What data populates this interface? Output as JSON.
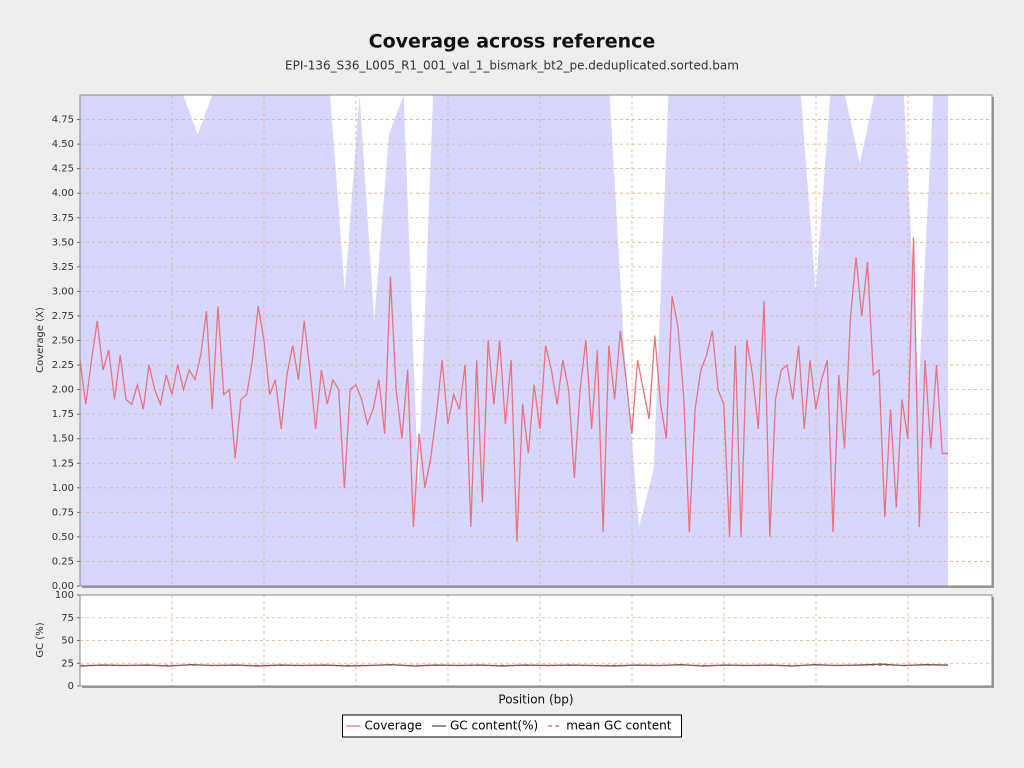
{
  "chart_data": [
    {
      "type": "line",
      "title": "Coverage across reference",
      "subtitle": "EPI-136_S36_L005_R1_001_val_1_bismark_bt2_pe.deduplicated.sorted.bam",
      "y_label": "Coverage (X)",
      "x_label": "Position (bp)",
      "ylim": [
        0,
        5
      ],
      "yticks": [
        {
          "value": 0,
          "label": "0.00"
        },
        {
          "value": 0.25,
          "label": "0.25"
        },
        {
          "value": 0.5,
          "label": "0.50"
        },
        {
          "value": 0.75,
          "label": "0.75"
        },
        {
          "value": 1,
          "label": "1.00"
        },
        {
          "value": 1.25,
          "label": "1.25"
        },
        {
          "value": 1.5,
          "label": "1.50"
        },
        {
          "value": 1.75,
          "label": "1.75"
        },
        {
          "value": 2,
          "label": "2.00"
        },
        {
          "value": 2.25,
          "label": "2.25"
        },
        {
          "value": 2.5,
          "label": "2.50"
        },
        {
          "value": 2.75,
          "label": "2.75"
        },
        {
          "value": 3,
          "label": "3.00"
        },
        {
          "value": 3.25,
          "label": "3.25"
        },
        {
          "value": 3.5,
          "label": "3.50"
        },
        {
          "value": 3.75,
          "label": "3.75"
        },
        {
          "value": 4,
          "label": "4.00"
        },
        {
          "value": 4.25,
          "label": "4.25"
        },
        {
          "value": 4.5,
          "label": "4.50"
        },
        {
          "value": 4.75,
          "label": "4.75"
        }
      ],
      "grid": true,
      "area": {
        "color": "#d6d6ff",
        "values": [
          5,
          5,
          5,
          5,
          5,
          5,
          5,
          5,
          4.6,
          5,
          5,
          5,
          5,
          5,
          5,
          5,
          5,
          5,
          3.0,
          5,
          2.7,
          4.6,
          5,
          1.0,
          5,
          5,
          5,
          5,
          5,
          5,
          5,
          5,
          5,
          5,
          5,
          5,
          5,
          2.4,
          0.6,
          1.2,
          5,
          5,
          5,
          5,
          5,
          5,
          5,
          5,
          5,
          5,
          3.0,
          5,
          5,
          4.3,
          5,
          5,
          5,
          2.0,
          5,
          5
        ]
      },
      "series": [
        {
          "name": "Coverage",
          "color": "#e8737c",
          "values": [
            2.3,
            1.85,
            2.3,
            2.7,
            2.2,
            2.4,
            1.9,
            2.35,
            1.9,
            1.85,
            2.05,
            1.8,
            2.25,
            2.0,
            1.85,
            2.15,
            1.95,
            2.25,
            2.0,
            2.2,
            2.1,
            2.35,
            2.8,
            1.8,
            2.85,
            1.95,
            2.0,
            1.3,
            1.9,
            1.95,
            2.3,
            2.85,
            2.5,
            1.95,
            2.1,
            1.6,
            2.15,
            2.45,
            2.1,
            2.7,
            2.2,
            1.6,
            2.2,
            1.85,
            2.1,
            2.0,
            1.0,
            2.0,
            2.05,
            1.9,
            1.65,
            1.8,
            2.1,
            1.55,
            3.15,
            2.0,
            1.5,
            2.2,
            0.6,
            1.55,
            1.0,
            1.3,
            1.75,
            2.3,
            1.65,
            1.95,
            1.8,
            2.25,
            0.6,
            2.3,
            0.85,
            2.5,
            1.85,
            2.5,
            1.65,
            2.3,
            0.45,
            1.85,
            1.35,
            2.05,
            1.6,
            2.45,
            2.2,
            1.85,
            2.3,
            2.0,
            1.1,
            2.0,
            2.5,
            1.6,
            2.4,
            0.55,
            2.45,
            1.9,
            2.6,
            2.1,
            1.55,
            2.3,
            2.0,
            1.7,
            2.55,
            1.85,
            1.5,
            2.95,
            2.65,
            1.95,
            0.55,
            1.8,
            2.2,
            2.35,
            2.6,
            2.0,
            1.85,
            0.5,
            2.45,
            0.5,
            2.5,
            2.15,
            1.6,
            2.9,
            0.5,
            1.9,
            2.2,
            2.25,
            1.9,
            2.45,
            1.6,
            2.3,
            1.8,
            2.1,
            2.3,
            0.55,
            2.15,
            1.4,
            2.7,
            3.35,
            2.75,
            3.3,
            2.15,
            2.2,
            0.7,
            1.8,
            0.8,
            1.9,
            1.5,
            3.55,
            0.6,
            2.3,
            1.4,
            2.25,
            1.35,
            1.35
          ]
        }
      ]
    },
    {
      "type": "line",
      "y_label": "GC (%)",
      "ylim": [
        0,
        100
      ],
      "yticks": [
        0,
        25,
        50,
        75,
        100
      ],
      "grid": true,
      "series": [
        {
          "name": "GC content(%)",
          "color": "#555555",
          "values": [
            22,
            23,
            22.5,
            23,
            22,
            23.5,
            22.5,
            23,
            22,
            23,
            22.5,
            23,
            22,
            22.5,
            23.5,
            22,
            23,
            22.5,
            23,
            22,
            23,
            22.5,
            23,
            22.5,
            22,
            23,
            22.5,
            23.5,
            22,
            23,
            22.5,
            23,
            22,
            23.5,
            22.5,
            23,
            24,
            22.5,
            23.5,
            23
          ]
        }
      ],
      "mean": {
        "name": "mean GC content",
        "color": "#e05050",
        "value": 22.8
      }
    }
  ]
}
